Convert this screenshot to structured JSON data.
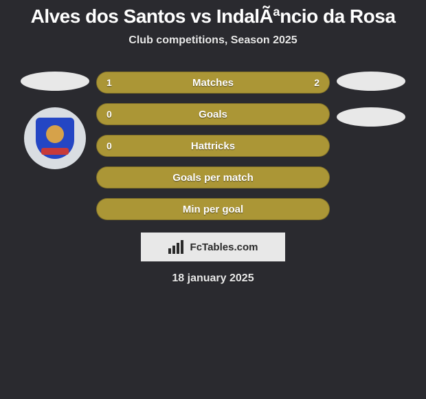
{
  "background_color": "#2a2a2f",
  "title": {
    "text": "Alves dos Santos vs IndalÃªncio da Rosa",
    "color": "#ffffff",
    "fontsize": 28
  },
  "subtitle": {
    "text": "Club competitions, Season 2025",
    "color": "#e9e9e9",
    "fontsize": 16
  },
  "left_player": {
    "ellipse_color": "#e8e8e8",
    "crest": {
      "ring_color": "#d9dde2",
      "shield_color": "#2446c4",
      "stripe_color": "#c73a3a",
      "inner_color": "#d6a24a"
    }
  },
  "right_player": {
    "ellipse1_color": "#e8e8e8",
    "ellipse2_color": "#e8e8e8"
  },
  "bars": {
    "bg_color": "#ab9636",
    "fill_color": "#ab9636",
    "label_color": "#ffffff",
    "value_color": "#ffffff",
    "label_fontsize": 15,
    "rows": [
      {
        "label": "Matches",
        "left": "1",
        "right": "2",
        "left_pct": 33,
        "right_pct": 67
      },
      {
        "label": "Goals",
        "left": "0",
        "right": "",
        "left_pct": 0,
        "right_pct": 0
      },
      {
        "label": "Hattricks",
        "left": "0",
        "right": "",
        "left_pct": 0,
        "right_pct": 0
      },
      {
        "label": "Goals per match",
        "left": "",
        "right": "",
        "left_pct": 0,
        "right_pct": 0
      },
      {
        "label": "Min per goal",
        "left": "",
        "right": "",
        "left_pct": 0,
        "right_pct": 0
      }
    ]
  },
  "attribution": {
    "text": "FcTables.com",
    "bg_color": "#e8e8e8",
    "text_color": "#2a2a2a"
  },
  "date": {
    "text": "18 january 2025",
    "color": "#e9e9e9",
    "fontsize": 16
  }
}
